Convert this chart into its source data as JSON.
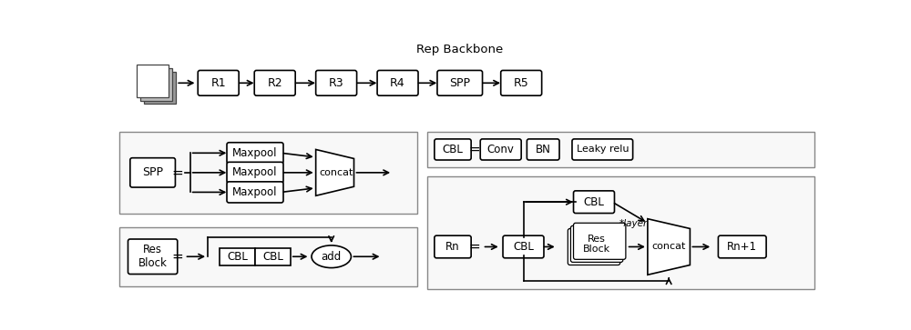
{
  "bg_color": "#ffffff",
  "title_top": "Rep Backbone",
  "backbone_boxes": [
    "R1",
    "R2",
    "R3",
    "R4",
    "SPP",
    "R5"
  ],
  "font_size": 9,
  "font_size_small": 8
}
